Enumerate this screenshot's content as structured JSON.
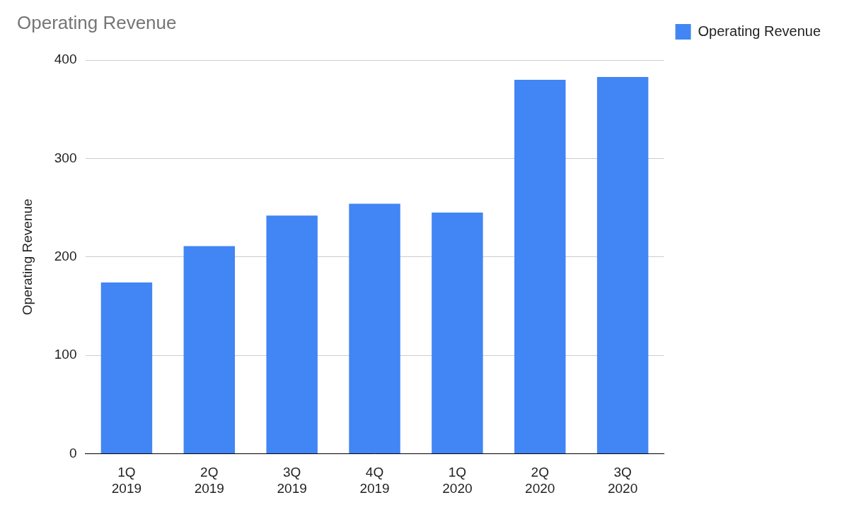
{
  "chart_data": {
    "type": "bar",
    "title": "Operating Revenue",
    "y_label": "Operating Revenue",
    "categories": [
      "1Q 2019",
      "2Q 2019",
      "3Q 2019",
      "4Q 2019",
      "1Q 2020",
      "2Q 2020",
      "3Q 2020"
    ],
    "series": [
      {
        "name": "Operating Revenue",
        "color": "#4285f4",
        "values": [
          174,
          211,
          242,
          254,
          245,
          380,
          383
        ]
      }
    ],
    "ylim": [
      0,
      400
    ],
    "yticks": [
      0,
      100,
      200,
      300,
      400
    ],
    "grid": true,
    "legend": "top-right"
  }
}
